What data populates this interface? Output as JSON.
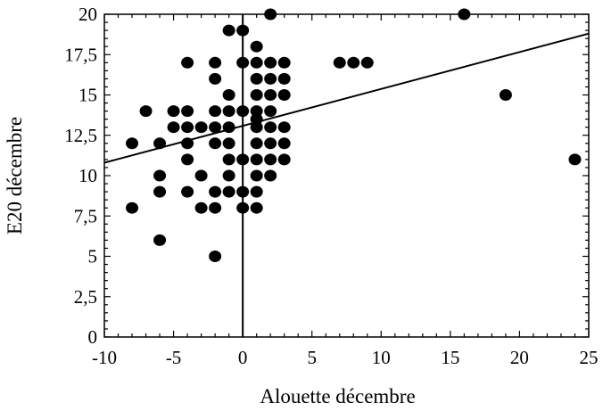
{
  "chart_data": {
    "type": "scatter",
    "xlabel": "Alouette décembre",
    "ylabel": "E20 décembre",
    "xlim": [
      -10,
      25
    ],
    "ylim": [
      0,
      20
    ],
    "x_ticks": [
      -10,
      -5,
      0,
      5,
      10,
      15,
      20,
      25
    ],
    "x_tick_labels": [
      "-10",
      "-5",
      "0",
      "5",
      "10",
      "15",
      "20",
      "25"
    ],
    "y_ticks": [
      0,
      2.5,
      5,
      7.5,
      10,
      12.5,
      15,
      17.5,
      20
    ],
    "y_tick_labels": [
      "0",
      "2,5",
      "5",
      "7,5",
      "10",
      "12,5",
      "15",
      "17,5",
      "20"
    ],
    "zero_line_x": 0,
    "regression_line": {
      "x": [
        -10,
        25
      ],
      "y": [
        10.8,
        18.8
      ]
    },
    "colors": {
      "points": "#000000",
      "line": "#000000",
      "background": "#ffffff"
    },
    "series": [
      {
        "points": [
          [
            -8,
            12
          ],
          [
            -8,
            8
          ],
          [
            -7,
            14
          ],
          [
            -6,
            12
          ],
          [
            -6,
            10
          ],
          [
            -6,
            9
          ],
          [
            -6,
            6
          ],
          [
            -5,
            14
          ],
          [
            -5,
            13
          ],
          [
            -4,
            17
          ],
          [
            -4,
            14
          ],
          [
            -4,
            13
          ],
          [
            -4,
            12
          ],
          [
            -4,
            11
          ],
          [
            -4,
            9
          ],
          [
            -3,
            13
          ],
          [
            -3,
            10
          ],
          [
            -3,
            8
          ],
          [
            -2,
            17
          ],
          [
            -2,
            16
          ],
          [
            -2,
            14
          ],
          [
            -2,
            13
          ],
          [
            -2,
            12
          ],
          [
            -2,
            9
          ],
          [
            -2,
            8
          ],
          [
            -2,
            5
          ],
          [
            -1,
            19
          ],
          [
            -1,
            15
          ],
          [
            -1,
            14
          ],
          [
            -1,
            13
          ],
          [
            -1,
            12
          ],
          [
            -1,
            11
          ],
          [
            -1,
            10
          ],
          [
            -1,
            9
          ],
          [
            0,
            19
          ],
          [
            0,
            17
          ],
          [
            0,
            14
          ],
          [
            0,
            11
          ],
          [
            0,
            9
          ],
          [
            0,
            8
          ],
          [
            1,
            18
          ],
          [
            1,
            17
          ],
          [
            1,
            16
          ],
          [
            1,
            15
          ],
          [
            1,
            14
          ],
          [
            1,
            13.5
          ],
          [
            1,
            13
          ],
          [
            1,
            12
          ],
          [
            1,
            11
          ],
          [
            1,
            10
          ],
          [
            1,
            9
          ],
          [
            1,
            8
          ],
          [
            2,
            20
          ],
          [
            2,
            17
          ],
          [
            2,
            16
          ],
          [
            2,
            15
          ],
          [
            2,
            14
          ],
          [
            2,
            13
          ],
          [
            2,
            12
          ],
          [
            2,
            11
          ],
          [
            2,
            10
          ],
          [
            3,
            17
          ],
          [
            3,
            16
          ],
          [
            3,
            15
          ],
          [
            3,
            13
          ],
          [
            3,
            12
          ],
          [
            3,
            11
          ],
          [
            7,
            17
          ],
          [
            8,
            17
          ],
          [
            9,
            17
          ],
          [
            16,
            20
          ],
          [
            19,
            15
          ],
          [
            24,
            11
          ]
        ]
      }
    ]
  }
}
